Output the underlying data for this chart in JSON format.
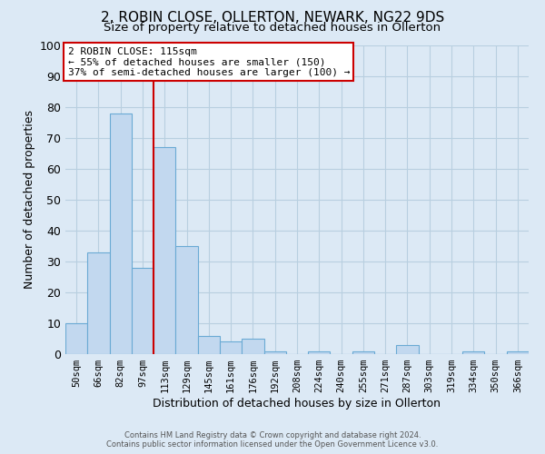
{
  "title": "2, ROBIN CLOSE, OLLERTON, NEWARK, NG22 9DS",
  "subtitle": "Size of property relative to detached houses in Ollerton",
  "xlabel": "Distribution of detached houses by size in Ollerton",
  "ylabel": "Number of detached properties",
  "categories": [
    "50sqm",
    "66sqm",
    "82sqm",
    "97sqm",
    "113sqm",
    "129sqm",
    "145sqm",
    "161sqm",
    "176sqm",
    "192sqm",
    "208sqm",
    "224sqm",
    "240sqm",
    "255sqm",
    "271sqm",
    "287sqm",
    "303sqm",
    "319sqm",
    "334sqm",
    "350sqm",
    "366sqm"
  ],
  "values": [
    10,
    33,
    78,
    28,
    67,
    35,
    6,
    4,
    5,
    1,
    0,
    1,
    0,
    1,
    0,
    3,
    0,
    0,
    1,
    0,
    1
  ],
  "bar_color": "#c2d8ef",
  "bar_edge_color": "#6aaad4",
  "bg_color": "#dce9f5",
  "grid_color": "#b8cfe0",
  "annotation_text_line1": "2 ROBIN CLOSE: 115sqm",
  "annotation_text_line2": "← 55% of detached houses are smaller (150)",
  "annotation_text_line3": "37% of semi-detached houses are larger (100) →",
  "annotation_box_color": "#ffffff",
  "annotation_box_edge_color": "#cc0000",
  "red_line_color": "#cc0000",
  "footer1": "Contains HM Land Registry data © Crown copyright and database right 2024.",
  "footer2": "Contains public sector information licensed under the Open Government Licence v3.0.",
  "ylim": [
    0,
    100
  ],
  "title_fontsize": 11,
  "subtitle_fontsize": 9.5,
  "tick_fontsize": 7.5,
  "ytick_fontsize": 9,
  "annot_fontsize": 8,
  "xlabel_fontsize": 9,
  "ylabel_fontsize": 9
}
